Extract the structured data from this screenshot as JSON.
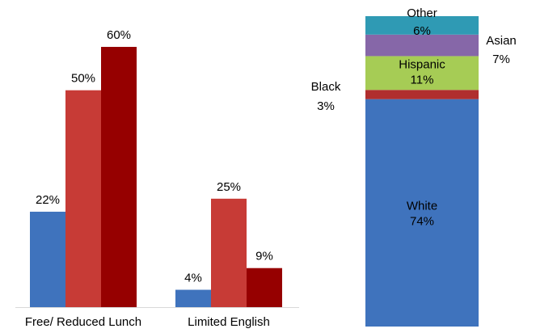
{
  "chart_data": [
    {
      "type": "bar",
      "categories": [
        "Free/ Reduced Lunch",
        "Limited English"
      ],
      "series": [
        {
          "color": "#3f73bd",
          "values": [
            22,
            4
          ]
        },
        {
          "color": "#c73b36",
          "values": [
            50,
            25
          ]
        },
        {
          "color": "#960000",
          "values": [
            60,
            9
          ]
        }
      ],
      "data_labels": [
        [
          "22%",
          "4%"
        ],
        [
          "50%",
          "25%"
        ],
        [
          "60%",
          "9%"
        ]
      ],
      "ylim": [
        0,
        60
      ],
      "grid": false
    },
    {
      "type": "bar",
      "stacked": true,
      "segments": [
        {
          "name": "White",
          "value": 74,
          "label": "74%",
          "color": "#3f73bd"
        },
        {
          "name": "Black",
          "value": 3,
          "label": "3%",
          "color": "#b02e2e"
        },
        {
          "name": "Hispanic",
          "value": 11,
          "label": "11%",
          "color": "#a6cc55"
        },
        {
          "name": "Asian",
          "value": 7,
          "label": "7%",
          "color": "#8667a8"
        },
        {
          "name": "Other",
          "value": 6,
          "label": "6%",
          "color": "#2f9ab4"
        }
      ],
      "grid": false
    }
  ]
}
